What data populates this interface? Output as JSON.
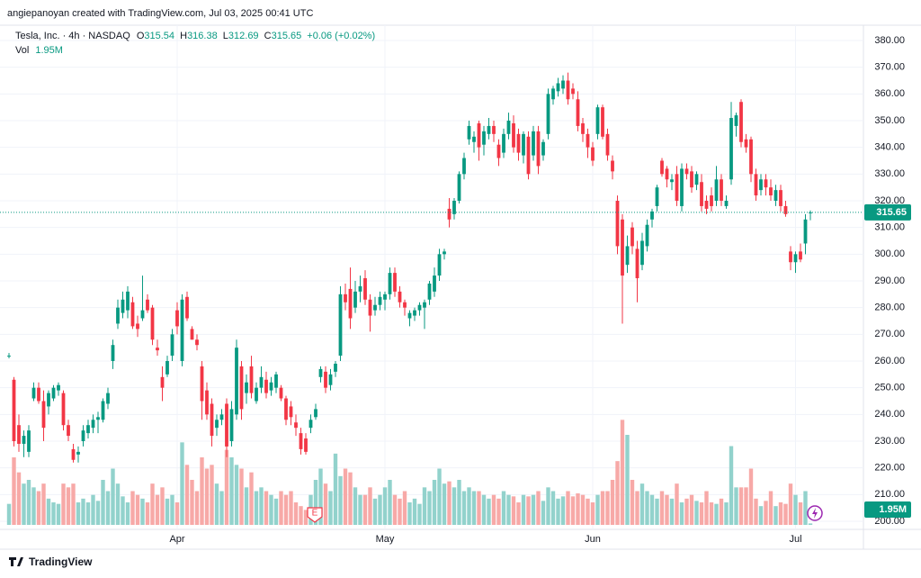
{
  "header": {
    "attribution": "angiepanoyan created with TradingView.com, Jul 03, 2025 00:41 UTC"
  },
  "footer": {
    "brand": "TradingView"
  },
  "chart_data": {
    "type": "candlestick",
    "title": "Tesla, Inc. · 4h · NASDAQ",
    "ohlc_labels": [
      "O",
      "H",
      "L",
      "C"
    ],
    "change": "+0.06 (+0.02%)",
    "volume_title": "Vol",
    "earnings_marker": "E",
    "up_color": "#089981",
    "down_color": "#f23645",
    "volume_up_color": "#92d2cc",
    "volume_down_color": "#f7a9a7",
    "ylim": [
      200,
      380
    ],
    "yticks": [
      {
        "value": 200,
        "label": "200.00"
      },
      {
        "value": 210,
        "label": "210.00"
      },
      {
        "value": 220,
        "label": "220.00"
      },
      {
        "value": 230,
        "label": "230.00"
      },
      {
        "value": 240,
        "label": "240.00"
      },
      {
        "value": 250,
        "label": "250.00"
      },
      {
        "value": 260,
        "label": "260.00"
      },
      {
        "value": 270,
        "label": "270.00"
      },
      {
        "value": 280,
        "label": "280.00"
      },
      {
        "value": 290,
        "label": "290.00"
      },
      {
        "value": 300,
        "label": "300.00"
      },
      {
        "value": 310,
        "label": "310.00"
      },
      {
        "value": 320,
        "label": "320.00"
      },
      {
        "value": 330,
        "label": "330.00"
      },
      {
        "value": 340,
        "label": "340.00"
      },
      {
        "value": 350,
        "label": "350.00"
      },
      {
        "value": 360,
        "label": "360.00"
      },
      {
        "value": 370,
        "label": "370.00"
      },
      {
        "value": 380,
        "label": "380.00"
      }
    ],
    "xlim": [
      0,
      162
    ],
    "xticks": [
      {
        "value": 34,
        "label": "Apr"
      },
      {
        "value": 76,
        "label": "May"
      },
      {
        "value": 118,
        "label": "Jun"
      },
      {
        "value": 159,
        "label": "Jul"
      }
    ],
    "grid": true,
    "candles": [
      [
        262,
        263,
        261,
        262
      ],
      [
        253,
        254,
        228,
        230
      ],
      [
        236,
        240,
        226,
        229
      ],
      [
        229,
        234,
        224,
        232
      ],
      [
        226,
        236,
        224,
        234
      ],
      [
        246,
        252,
        245,
        250
      ],
      [
        250,
        252,
        244,
        245
      ],
      [
        245,
        249,
        230,
        235
      ],
      [
        243,
        249,
        240,
        248
      ],
      [
        246,
        251,
        245,
        250
      ],
      [
        249,
        252,
        247,
        251
      ],
      [
        248,
        249,
        234,
        236
      ],
      [
        236,
        238,
        230,
        232
      ],
      [
        227,
        229,
        222,
        223
      ],
      [
        225,
        228,
        222,
        226
      ],
      [
        230,
        236,
        228,
        234
      ],
      [
        233,
        238,
        231,
        236
      ],
      [
        235,
        240,
        233,
        238
      ],
      [
        238,
        241,
        233,
        239
      ],
      [
        238,
        246,
        237,
        245
      ],
      [
        244,
        250,
        242,
        248
      ],
      [
        260,
        268,
        257,
        266
      ],
      [
        274,
        283,
        272,
        280
      ],
      [
        278,
        286,
        276,
        283
      ],
      [
        279,
        288,
        276,
        286
      ],
      [
        282,
        284,
        272,
        273
      ],
      [
        274,
        277,
        269,
        272
      ],
      [
        276,
        292,
        275,
        279
      ],
      [
        283,
        285,
        278,
        279
      ],
      [
        280,
        281,
        266,
        268
      ],
      [
        265,
        268,
        262,
        264
      ],
      [
        254,
        258,
        245,
        250
      ],
      [
        255,
        262,
        254,
        260
      ],
      [
        262,
        272,
        260,
        270
      ],
      [
        279,
        282,
        270,
        273
      ],
      [
        260,
        285,
        258,
        283
      ],
      [
        284,
        286,
        275,
        276
      ],
      [
        272,
        273,
        268,
        268
      ],
      [
        268,
        270,
        264,
        266
      ],
      [
        258,
        260,
        238,
        245
      ],
      [
        249,
        252,
        238,
        240
      ],
      [
        244,
        246,
        228,
        232
      ],
      [
        235,
        240,
        232,
        238
      ],
      [
        238,
        242,
        236,
        240
      ],
      [
        244,
        246,
        224,
        228
      ],
      [
        230,
        245,
        228,
        242
      ],
      [
        240,
        268,
        238,
        265
      ],
      [
        258,
        260,
        238,
        242
      ],
      [
        248,
        255,
        244,
        252
      ],
      [
        258,
        262,
        246,
        248
      ],
      [
        245,
        252,
        244,
        250
      ],
      [
        250,
        258,
        248,
        254
      ],
      [
        253,
        256,
        246,
        248
      ],
      [
        249,
        254,
        247,
        252
      ],
      [
        250,
        256,
        248,
        255
      ],
      [
        250,
        251,
        245,
        246
      ],
      [
        246,
        247,
        236,
        238
      ],
      [
        243,
        245,
        236,
        239
      ],
      [
        237,
        240,
        232,
        235
      ],
      [
        233,
        235,
        225,
        227
      ],
      [
        231,
        233,
        225,
        226
      ],
      [
        235,
        240,
        233,
        238
      ],
      [
        239,
        244,
        238,
        242
      ],
      [
        254,
        258,
        252,
        257
      ],
      [
        256,
        258,
        248,
        250
      ],
      [
        251,
        257,
        249,
        255
      ],
      [
        256,
        260,
        254,
        259
      ],
      [
        262,
        288,
        260,
        285
      ],
      [
        285,
        289,
        279,
        282
      ],
      [
        287,
        295,
        272,
        276
      ],
      [
        280,
        290,
        278,
        286
      ],
      [
        286,
        292,
        282,
        288
      ],
      [
        291,
        294,
        281,
        283
      ],
      [
        283,
        285,
        271,
        277
      ],
      [
        279,
        284,
        277,
        281
      ],
      [
        281,
        286,
        279,
        284
      ],
      [
        283,
        286,
        279,
        285
      ],
      [
        285,
        295,
        283,
        293
      ],
      [
        293,
        295,
        284,
        286
      ],
      [
        286,
        288,
        280,
        282
      ],
      [
        282,
        283,
        277,
        280
      ],
      [
        276,
        279,
        273,
        278
      ],
      [
        277,
        280,
        275,
        279
      ],
      [
        279,
        282,
        277,
        281
      ],
      [
        280,
        283,
        272,
        282
      ],
      [
        283,
        290,
        281,
        289
      ],
      [
        286,
        295,
        284,
        292
      ],
      [
        292,
        302,
        290,
        300
      ],
      [
        300,
        302,
        298,
        301
      ],
      [
        317,
        321,
        310,
        313
      ],
      [
        315,
        321,
        313,
        320
      ],
      [
        320,
        331,
        319,
        330
      ],
      [
        330,
        338,
        328,
        336
      ],
      [
        343,
        350,
        341,
        348
      ],
      [
        342,
        346,
        338,
        344
      ],
      [
        349,
        350,
        335,
        340
      ],
      [
        341,
        348,
        337,
        346
      ],
      [
        345,
        351,
        343,
        348
      ],
      [
        348,
        350,
        342,
        345
      ],
      [
        341,
        343,
        333,
        336
      ],
      [
        338,
        347,
        336,
        345
      ],
      [
        345,
        353,
        343,
        350
      ],
      [
        349,
        352,
        338,
        340
      ],
      [
        345,
        347,
        335,
        338
      ],
      [
        337,
        346,
        334,
        345
      ],
      [
        344,
        346,
        328,
        330
      ],
      [
        337,
        348,
        335,
        346
      ],
      [
        346,
        348,
        330,
        333
      ],
      [
        337,
        343,
        335,
        342
      ],
      [
        345,
        362,
        343,
        360
      ],
      [
        358,
        363,
        356,
        362
      ],
      [
        361,
        366,
        359,
        364
      ],
      [
        362,
        367,
        360,
        365
      ],
      [
        365,
        368,
        356,
        358
      ],
      [
        362,
        364,
        358,
        360
      ],
      [
        358,
        361,
        346,
        348
      ],
      [
        349,
        351,
        342,
        345
      ],
      [
        345,
        347,
        336,
        340
      ],
      [
        340,
        342,
        333,
        335
      ],
      [
        345,
        356,
        343,
        355
      ],
      [
        355,
        356,
        343,
        344
      ],
      [
        345,
        347,
        335,
        337
      ],
      [
        335,
        337,
        328,
        331
      ],
      [
        320,
        322,
        300,
        303
      ],
      [
        313,
        315,
        274,
        292
      ],
      [
        296,
        307,
        293,
        303
      ],
      [
        310,
        312,
        300,
        303
      ],
      [
        302,
        305,
        282,
        291
      ],
      [
        296,
        308,
        294,
        305
      ],
      [
        303,
        313,
        301,
        311
      ],
      [
        313,
        317,
        310,
        316
      ],
      [
        318,
        326,
        316,
        325
      ],
      [
        335,
        336,
        329,
        330
      ],
      [
        332,
        333,
        325,
        328
      ],
      [
        327,
        330,
        324,
        328
      ],
      [
        330,
        333,
        318,
        320
      ],
      [
        318,
        334,
        316,
        332
      ],
      [
        332,
        334,
        328,
        330
      ],
      [
        331,
        333,
        323,
        325
      ],
      [
        326,
        331,
        324,
        330
      ],
      [
        327,
        330,
        316,
        318
      ],
      [
        320,
        322,
        315,
        317
      ],
      [
        322,
        325,
        316,
        318
      ],
      [
        320,
        333,
        318,
        328
      ],
      [
        328,
        330,
        318,
        320
      ],
      [
        318,
        322,
        317,
        320
      ],
      [
        328,
        357,
        326,
        351
      ],
      [
        348,
        353,
        344,
        352
      ],
      [
        357,
        358,
        340,
        342
      ],
      [
        343,
        345,
        338,
        340
      ],
      [
        343,
        344,
        327,
        330
      ],
      [
        330,
        332,
        320,
        322
      ],
      [
        324,
        330,
        322,
        328
      ],
      [
        328,
        330,
        322,
        325
      ],
      [
        325,
        328,
        320,
        322
      ],
      [
        320,
        326,
        318,
        324
      ],
      [
        324,
        326,
        316,
        318
      ],
      [
        318,
        320,
        314,
        315
      ],
      [
        301,
        303,
        294,
        297
      ],
      [
        297,
        301,
        293,
        300
      ],
      [
        301,
        304,
        297,
        298
      ],
      [
        304,
        315,
        300,
        313
      ],
      [
        315.54,
        316.38,
        312.69,
        315.65
      ]
    ],
    "volume": {
      "vlim": [
        0,
        180
      ],
      "last_label": "1.95M",
      "values": [
        28,
        90,
        70,
        55,
        60,
        50,
        45,
        55,
        35,
        30,
        28,
        55,
        50,
        55,
        30,
        35,
        30,
        40,
        32,
        60,
        45,
        75,
        55,
        38,
        30,
        45,
        40,
        35,
        30,
        55,
        40,
        50,
        35,
        40,
        30,
        110,
        80,
        60,
        45,
        90,
        75,
        80,
        55,
        45,
        100,
        90,
        80,
        75,
        50,
        70,
        45,
        50,
        45,
        40,
        35,
        45,
        40,
        45,
        30,
        25,
        20,
        40,
        60,
        75,
        55,
        45,
        95,
        65,
        75,
        70,
        50,
        40,
        40,
        50,
        35,
        40,
        50,
        60,
        40,
        35,
        45,
        30,
        35,
        28,
        50,
        45,
        60,
        75,
        55,
        58,
        50,
        60,
        45,
        50,
        45,
        45,
        40,
        35,
        40,
        35,
        45,
        40,
        38,
        30,
        40,
        38,
        40,
        45,
        32,
        50,
        45,
        35,
        38,
        45,
        38,
        42,
        40,
        35,
        30,
        40,
        45,
        45,
        60,
        85,
        140,
        120,
        60,
        45,
        55,
        45,
        40,
        35,
        45,
        40,
        35,
        55,
        30,
        35,
        40,
        32,
        30,
        45,
        30,
        28,
        35,
        30,
        105,
        50,
        50,
        50,
        75,
        35,
        25,
        32,
        45,
        25,
        30,
        28,
        55,
        40,
        30,
        45,
        1.95
      ]
    }
  }
}
